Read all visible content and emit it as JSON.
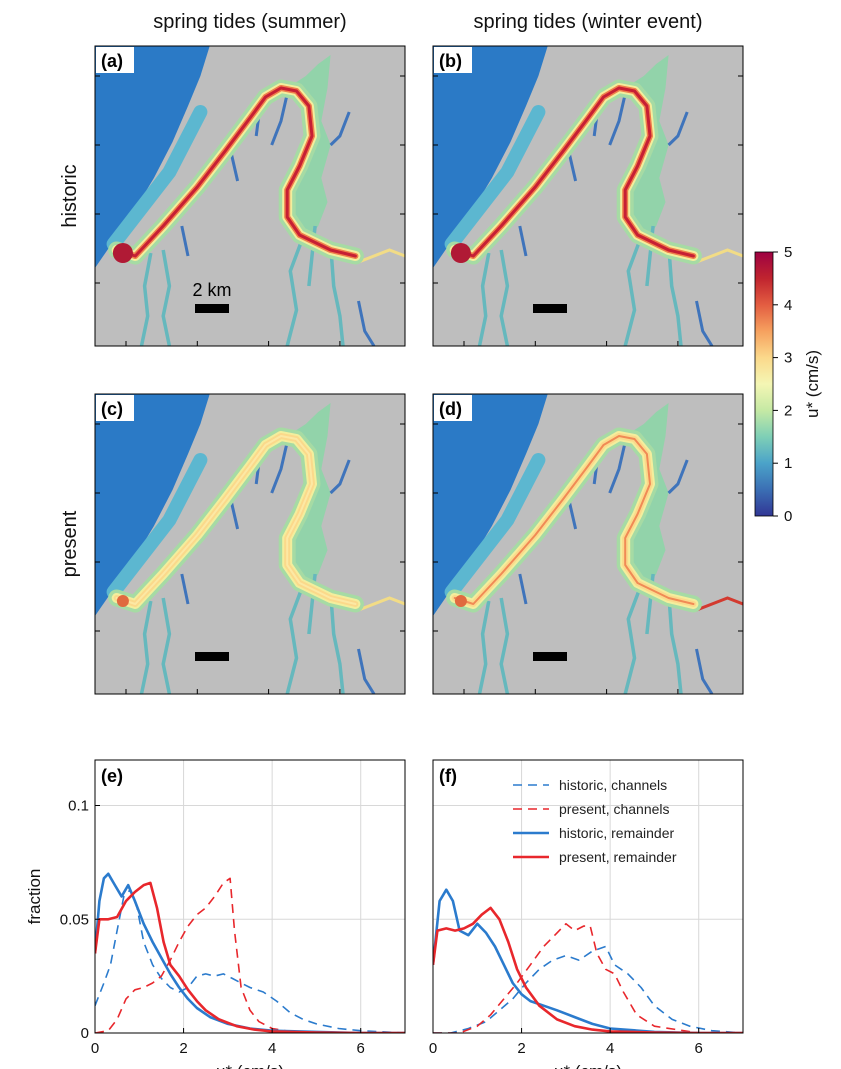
{
  "column_titles": [
    "spring tides (summer)",
    "spring tides (winter event)"
  ],
  "row_labels": [
    "historic",
    "present"
  ],
  "map_panels": [
    {
      "label": "(a)",
      "scenario": "historic",
      "season": "summer",
      "intensity": 0.85,
      "river_exit": "pale"
    },
    {
      "label": "(b)",
      "scenario": "historic",
      "season": "winter event",
      "intensity": 1.0,
      "river_exit": "pale"
    },
    {
      "label": "(c)",
      "scenario": "present",
      "season": "summer",
      "intensity": 0.55,
      "river_exit": "pale"
    },
    {
      "label": "(d)",
      "scenario": "present",
      "season": "winter event",
      "intensity": 0.7,
      "river_exit": "red"
    }
  ],
  "scale_bar_label": "2 km",
  "colorbar": {
    "label": "u* (cm/s)",
    "min": 0,
    "max": 5,
    "ticks": [
      "0",
      "1",
      "2",
      "3",
      "4",
      "5"
    ],
    "colors": [
      "#313695",
      "#3b6fb4",
      "#4ba3c9",
      "#7ecfb6",
      "#c5e9a4",
      "#f4f6b4",
      "#fbd98b",
      "#f6a15f",
      "#e35d41",
      "#c0242f",
      "#9e0142"
    ]
  },
  "colors": {
    "land": "#bebebe",
    "sea": "#2b7ac6",
    "historic": "#2b7bcd",
    "present": "#e8272c"
  },
  "legend": [
    "historic, channels",
    "present, channels",
    "historic, remainder",
    "present, remainder"
  ],
  "chart_data": [
    {
      "type": "line",
      "title": "(e)",
      "xlabel": "u* (cm/s)",
      "ylabel": "fraction",
      "xlim": [
        0,
        7
      ],
      "ylim": [
        0,
        0.12
      ],
      "xticks": [
        "0",
        "2",
        "4",
        "6"
      ],
      "yticks": [
        "0",
        "0.05",
        "0.1"
      ],
      "grid": true,
      "series": [
        {
          "name": "historic, channels",
          "color": "#2b7bcd",
          "dash": true,
          "x": [
            0,
            0.2,
            0.35,
            0.5,
            0.65,
            0.8,
            0.95,
            1.1,
            1.3,
            1.5,
            1.7,
            1.9,
            2.1,
            2.3,
            2.5,
            2.7,
            2.9,
            3.1,
            3.3,
            3.5,
            3.8,
            4.1,
            4.4,
            4.7,
            5.0,
            5.5,
            6.0,
            7.0
          ],
          "y": [
            0.012,
            0.022,
            0.03,
            0.045,
            0.06,
            0.063,
            0.055,
            0.04,
            0.03,
            0.024,
            0.02,
            0.018,
            0.02,
            0.025,
            0.026,
            0.025,
            0.026,
            0.024,
            0.022,
            0.02,
            0.018,
            0.014,
            0.009,
            0.006,
            0.004,
            0.002,
            0.001,
            0
          ]
        },
        {
          "name": "present, channels",
          "color": "#e8272c",
          "dash": true,
          "x": [
            0,
            0.3,
            0.5,
            0.7,
            0.9,
            1.1,
            1.3,
            1.5,
            1.7,
            1.9,
            2.1,
            2.3,
            2.5,
            2.7,
            2.9,
            3.05,
            3.15,
            3.3,
            3.5,
            3.7,
            4.0,
            4.3,
            5.0,
            7.0
          ],
          "y": [
            0,
            0.001,
            0.006,
            0.015,
            0.019,
            0.02,
            0.022,
            0.025,
            0.032,
            0.04,
            0.047,
            0.052,
            0.055,
            0.06,
            0.066,
            0.068,
            0.045,
            0.02,
            0.01,
            0.005,
            0.002,
            0.001,
            0,
            0
          ]
        },
        {
          "name": "historic, remainder",
          "color": "#2b7bcd",
          "dash": false,
          "x": [
            0,
            0.1,
            0.2,
            0.3,
            0.45,
            0.6,
            0.75,
            0.9,
            1.1,
            1.3,
            1.5,
            1.7,
            1.9,
            2.1,
            2.3,
            2.6,
            3.0,
            3.5,
            4.0,
            5.0,
            6.0,
            7.0
          ],
          "y": [
            0.035,
            0.058,
            0.068,
            0.07,
            0.065,
            0.06,
            0.065,
            0.058,
            0.048,
            0.04,
            0.033,
            0.026,
            0.02,
            0.015,
            0.011,
            0.007,
            0.004,
            0.002,
            0.001,
            0.0005,
            0,
            0
          ]
        },
        {
          "name": "present, remainder",
          "color": "#e8272c",
          "dash": false,
          "x": [
            0,
            0.1,
            0.3,
            0.5,
            0.7,
            0.9,
            1.1,
            1.25,
            1.4,
            1.55,
            1.7,
            1.9,
            2.1,
            2.3,
            2.5,
            2.8,
            3.2,
            3.6,
            4.0,
            5.0,
            6.0,
            7.0
          ],
          "y": [
            0.035,
            0.05,
            0.05,
            0.051,
            0.058,
            0.062,
            0.065,
            0.066,
            0.055,
            0.04,
            0.03,
            0.025,
            0.019,
            0.014,
            0.01,
            0.006,
            0.003,
            0.0015,
            0.0007,
            0.0002,
            0,
            0
          ]
        }
      ]
    },
    {
      "type": "line",
      "title": "(f)",
      "xlabel": "u* (cm/s)",
      "ylabel": "",
      "xlim": [
        0,
        7
      ],
      "ylim": [
        0,
        0.12
      ],
      "xticks": [
        "0",
        "2",
        "4",
        "6"
      ],
      "yticks": [],
      "grid": true,
      "series": [
        {
          "name": "historic, channels",
          "color": "#2b7bcd",
          "dash": true,
          "x": [
            0,
            0.4,
            0.8,
            1.2,
            1.5,
            1.8,
            2.1,
            2.4,
            2.7,
            3.0,
            3.3,
            3.6,
            3.9,
            4.1,
            4.4,
            4.7,
            5.0,
            5.4,
            5.8,
            6.3,
            7.0
          ],
          "y": [
            0,
            0,
            0.002,
            0.005,
            0.01,
            0.015,
            0.022,
            0.028,
            0.032,
            0.034,
            0.032,
            0.036,
            0.038,
            0.03,
            0.026,
            0.02,
            0.012,
            0.006,
            0.003,
            0.001,
            0
          ]
        },
        {
          "name": "present, channels",
          "color": "#e8272c",
          "dash": true,
          "x": [
            0,
            0.6,
            1.0,
            1.3,
            1.6,
            1.9,
            2.2,
            2.5,
            2.8,
            3.0,
            3.2,
            3.4,
            3.55,
            3.7,
            3.9,
            4.1,
            4.3,
            4.6,
            5.0,
            6.0,
            7.0
          ],
          "y": [
            0,
            0,
            0.003,
            0.008,
            0.015,
            0.022,
            0.03,
            0.038,
            0.044,
            0.048,
            0.045,
            0.047,
            0.047,
            0.035,
            0.028,
            0.026,
            0.018,
            0.008,
            0.003,
            0,
            0
          ]
        },
        {
          "name": "historic, remainder",
          "color": "#2b7bcd",
          "dash": false,
          "x": [
            0,
            0.15,
            0.3,
            0.45,
            0.6,
            0.8,
            1.0,
            1.2,
            1.4,
            1.6,
            1.8,
            2.0,
            2.2,
            2.5,
            2.8,
            3.2,
            3.6,
            4.0,
            5.0,
            6.0,
            7.0
          ],
          "y": [
            0.03,
            0.058,
            0.063,
            0.058,
            0.045,
            0.043,
            0.048,
            0.044,
            0.038,
            0.03,
            0.022,
            0.017,
            0.014,
            0.012,
            0.01,
            0.007,
            0.004,
            0.002,
            0.0005,
            0,
            0
          ]
        },
        {
          "name": "present, remainder",
          "color": "#e8272c",
          "dash": false,
          "x": [
            0,
            0.1,
            0.3,
            0.5,
            0.7,
            0.9,
            1.1,
            1.3,
            1.5,
            1.7,
            1.9,
            2.1,
            2.4,
            2.8,
            3.2,
            3.6,
            4.0,
            5.0,
            6.0,
            7.0
          ],
          "y": [
            0.03,
            0.045,
            0.046,
            0.045,
            0.046,
            0.048,
            0.052,
            0.055,
            0.05,
            0.04,
            0.028,
            0.02,
            0.012,
            0.006,
            0.003,
            0.0015,
            0.0007,
            0.0002,
            0,
            0
          ]
        }
      ]
    }
  ]
}
